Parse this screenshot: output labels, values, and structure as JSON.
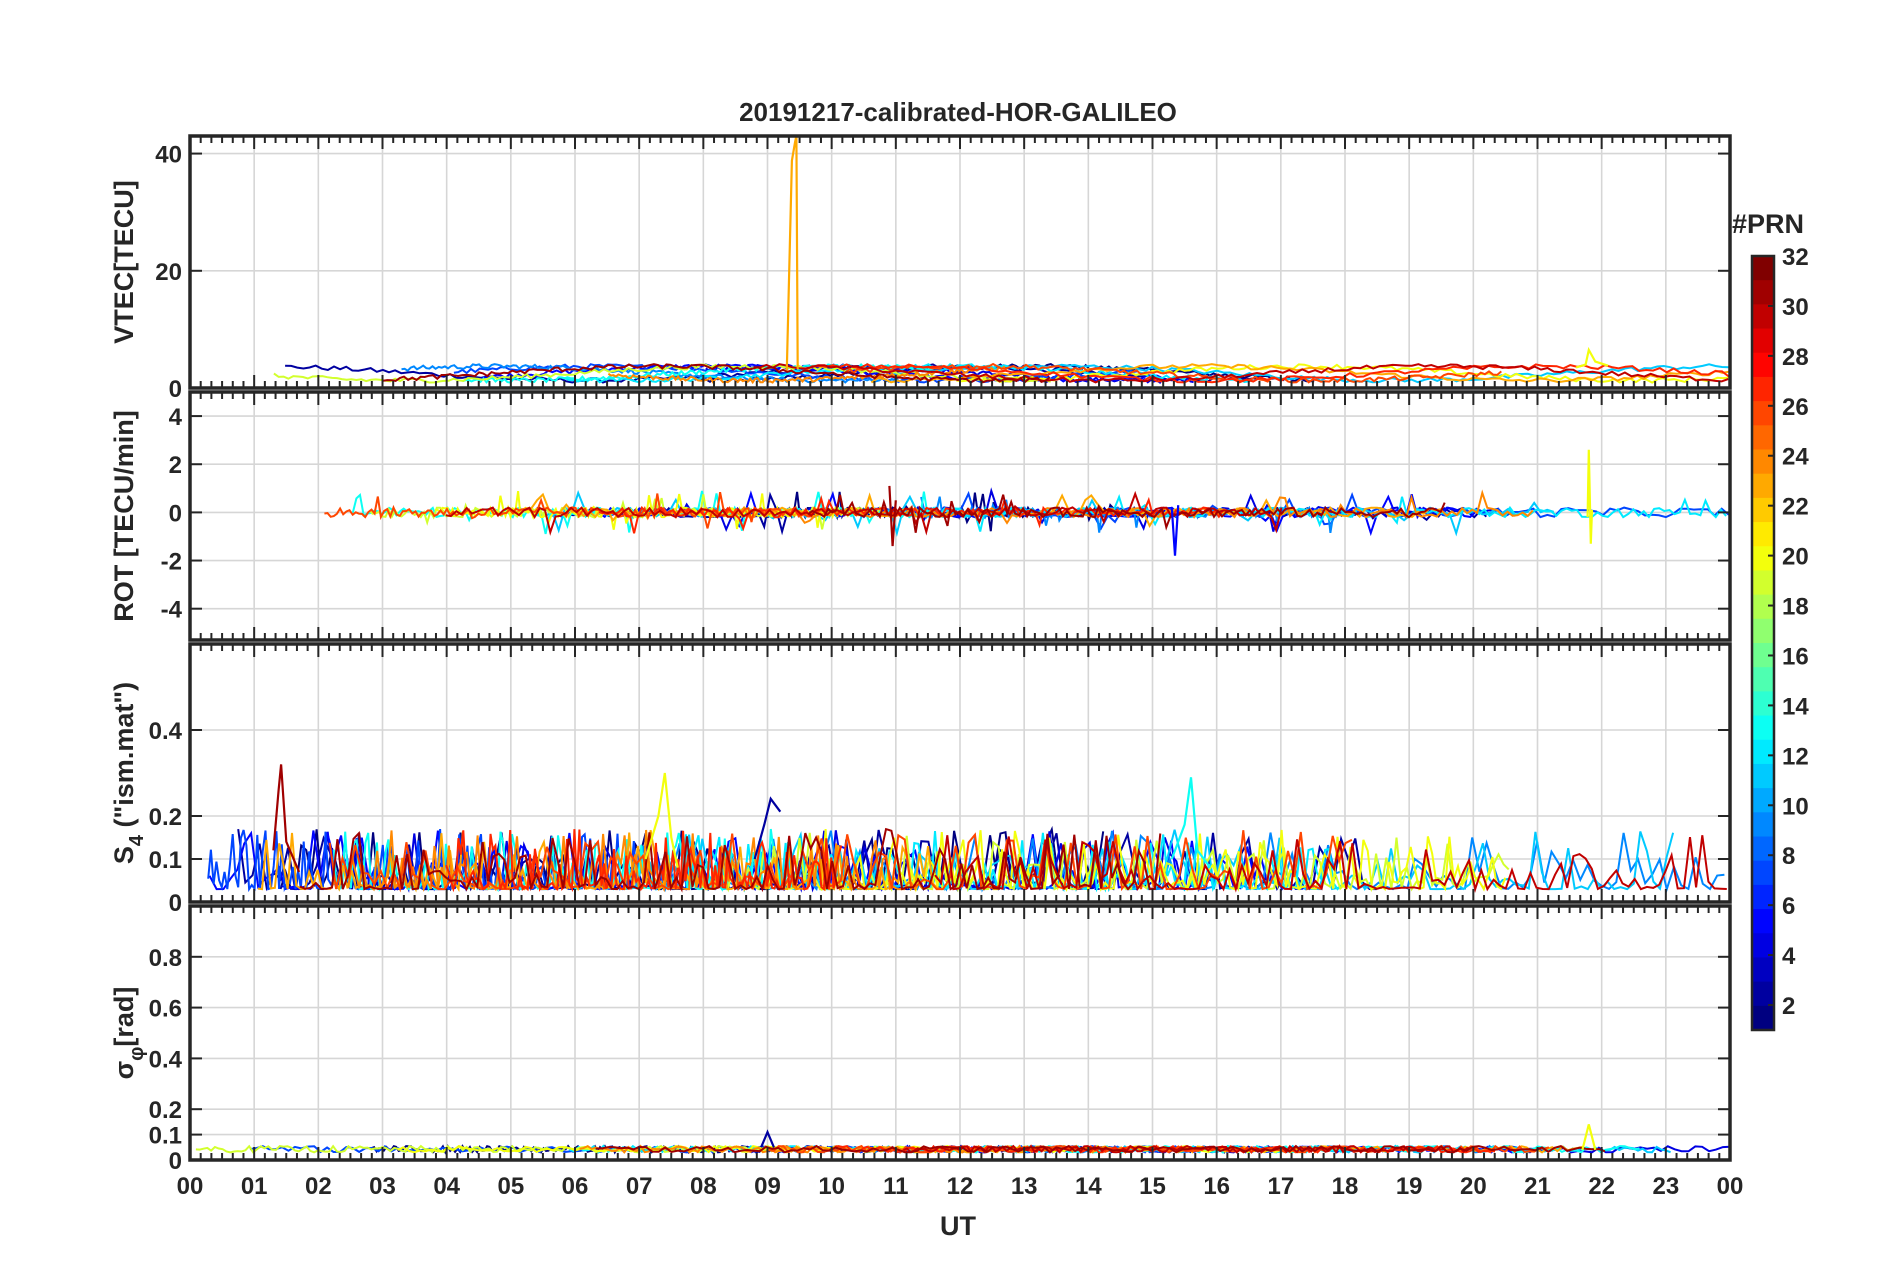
{
  "figure": {
    "title": "20191217-calibrated-HOR-GALILEO",
    "xlabel": "UT",
    "colorbar": {
      "label": "#PRN",
      "ticks": [
        2,
        4,
        6,
        8,
        10,
        12,
        14,
        16,
        18,
        20,
        22,
        24,
        26,
        28,
        30,
        32
      ],
      "range": [
        1,
        32
      ],
      "colormap": "jet"
    }
  },
  "chart_data": [
    {
      "type": "line",
      "panel": "vtec",
      "ylabel": "VTEC[TECU]",
      "xlim": [
        0,
        24
      ],
      "ylim": [
        0,
        43
      ],
      "yticks": [
        0,
        20,
        40
      ],
      "xticklabels": [
        "00",
        "01",
        "02",
        "03",
        "04",
        "05",
        "06",
        "07",
        "08",
        "09",
        "10",
        "11",
        "12",
        "13",
        "14",
        "15",
        "16",
        "17",
        "18",
        "19",
        "20",
        "21",
        "22",
        "23",
        "00"
      ],
      "grid": true,
      "notes_visible": "many PRN traces near 1–5 TECU; a single orange spike to ~43 TECU at 09.45 UT; yellow spike ~6.5 at 21.8 UT",
      "series": [
        {
          "prn": 23,
          "x": [
            9.3,
            9.38,
            9.43,
            9.45,
            9.47
          ],
          "y": [
            3,
            38.8,
            42,
            43,
            3.2
          ]
        },
        {
          "prn": 20,
          "x": [
            21.6,
            21.75,
            21.8,
            21.9,
            22.1
          ],
          "y": [
            3.5,
            4,
            6.5,
            4.5,
            3.8
          ]
        }
      ]
    },
    {
      "type": "line",
      "panel": "rot",
      "ylabel": "ROT [TECU/min]",
      "xlim": [
        0,
        24
      ],
      "ylim": [
        -5.3,
        5
      ],
      "yticks": [
        -4,
        -2,
        0,
        2,
        4
      ],
      "grid": true,
      "notes_visible": "fluctuations around 0 within about ±1; yellow peak ~2.6 at 21.8 UT; blue dip ~-1.8 at 15.35 UT",
      "series": [
        {
          "prn": 20,
          "x": [
            21.78,
            21.8,
            21.83,
            21.85
          ],
          "y": [
            -0.2,
            2.6,
            -1.3,
            0.1
          ]
        },
        {
          "prn": 5,
          "x": [
            15.3,
            15.35,
            15.4
          ],
          "y": [
            0.2,
            -1.8,
            0.3
          ]
        },
        {
          "prn": 31,
          "x": [
            10.9,
            10.95,
            11.0
          ],
          "y": [
            1.1,
            -1.4,
            0.5
          ]
        }
      ]
    },
    {
      "type": "line",
      "panel": "s4",
      "ylabel": "S4 (\"ism.mat\")",
      "ylabel_main": "S",
      "ylabel_sub": "4",
      "ylabel_rest": " (\"ism.mat\")",
      "xlim": [
        0,
        24
      ],
      "ylim": [
        0,
        0.6
      ],
      "yticks": [
        0,
        0.1,
        0.2,
        0.4
      ],
      "grid": true,
      "notes_visible": "S4 mostly 0.02–0.15; peaks ~0.32 at 01.4 UT (dark red), ~0.30 at 07.4 UT (yellow), ~0.29 at 15.6 UT (cyan), ~0.24 at 09.0 UT (dark blue)",
      "series": [
        {
          "prn": 31,
          "x": [
            1.3,
            1.38,
            1.42,
            1.5,
            1.7
          ],
          "y": [
            0.12,
            0.26,
            0.32,
            0.14,
            0.07
          ]
        },
        {
          "prn": 20,
          "x": [
            7.1,
            7.3,
            7.4,
            7.5,
            7.6
          ],
          "y": [
            0.1,
            0.2,
            0.3,
            0.15,
            0.08
          ]
        },
        {
          "prn": 13,
          "x": [
            15.3,
            15.5,
            15.6,
            15.7,
            15.9
          ],
          "y": [
            0.1,
            0.18,
            0.29,
            0.12,
            0.08
          ]
        },
        {
          "prn": 2,
          "x": [
            8.8,
            8.95,
            9.05,
            9.2
          ],
          "y": [
            0.1,
            0.18,
            0.24,
            0.21
          ]
        }
      ]
    },
    {
      "type": "line",
      "panel": "sigma_phi",
      "ylabel": "σφ[rad]",
      "ylabel_main": "σ",
      "ylabel_sub": "φ",
      "ylabel_rest": "[rad]",
      "xlim": [
        0,
        24
      ],
      "ylim": [
        0,
        1
      ],
      "yticks": [
        0,
        0.1,
        0.2,
        0.4,
        0.6,
        0.8
      ],
      "grid": true,
      "notes_visible": "values mostly 0.02–0.08; small peaks ~0.12 at 09.0 UT and ~0.14 at 21.8 UT",
      "series": [
        {
          "prn": 20,
          "x": [
            21.7,
            21.8,
            21.9
          ],
          "y": [
            0.04,
            0.14,
            0.04
          ]
        },
        {
          "prn": 2,
          "x": [
            8.9,
            9.0,
            9.1
          ],
          "y": [
            0.05,
            0.11,
            0.05
          ]
        }
      ]
    }
  ]
}
